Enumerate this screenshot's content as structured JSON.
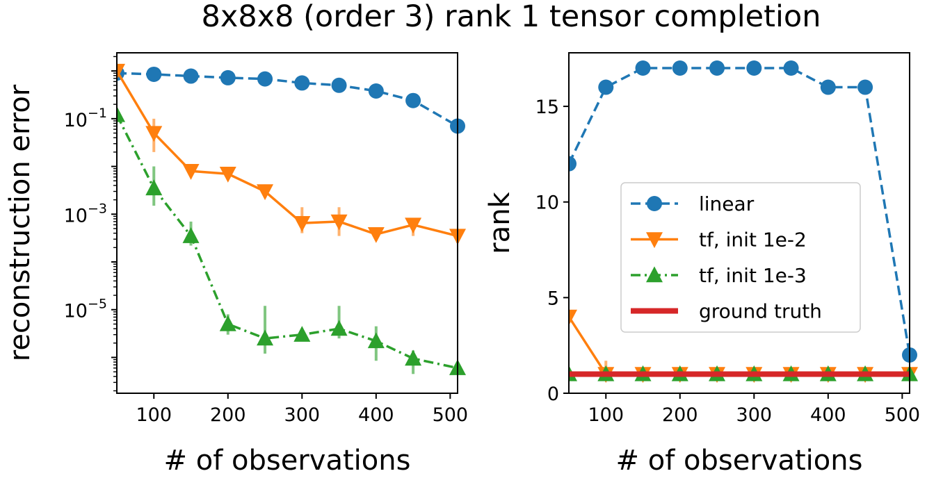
{
  "suptitle": "8x8x8 (order 3) rank 1 tensor completion",
  "colors": {
    "linear": "#1f77b4",
    "tf_1e2": "#ff7f0e",
    "tf_1e3": "#2ca02c",
    "ground_truth": "#d62728"
  },
  "chart_data": [
    {
      "type": "line",
      "yscale": "log",
      "title": "",
      "xlabel": "# of observations",
      "ylabel": "reconstruction error",
      "xlim": [
        50,
        510
      ],
      "ylim_log10": [
        -6.75,
        0.38
      ],
      "xticks": [
        100,
        200,
        300,
        400,
        500
      ],
      "yticks": [
        {
          "exp": -1,
          "label": "10",
          "sup": "−1"
        },
        {
          "exp": -3,
          "label": "10",
          "sup": "−3"
        },
        {
          "exp": -5,
          "label": "10",
          "sup": "−5"
        }
      ],
      "x": [
        50,
        100,
        150,
        200,
        250,
        300,
        350,
        400,
        450,
        510
      ],
      "series": [
        {
          "name": "linear",
          "color_key": "linear",
          "marker": "circle",
          "linestyle": "dashed",
          "values": [
            0.9,
            0.85,
            0.78,
            0.72,
            0.68,
            0.56,
            0.5,
            0.38,
            0.24,
            0.07
          ]
        },
        {
          "name": "tf, init 1e-2",
          "color_key": "tf_1e2",
          "marker": "triangle-down",
          "linestyle": "solid",
          "values": [
            1.0,
            0.05,
            0.008,
            0.007,
            0.003,
            0.00065,
            0.0007,
            0.00038,
            0.0006,
            0.00035
          ],
          "err_low": [
            0.9,
            0.02,
            0.006,
            0.0055,
            0.0022,
            0.0004,
            0.00035,
            0.00028,
            0.00035,
            0.00025
          ],
          "err_high": [
            1.15,
            0.1,
            0.011,
            0.009,
            0.0042,
            0.0014,
            0.0014,
            0.0005,
            0.0008,
            0.00045
          ]
        },
        {
          "name": "tf, init 1e-3",
          "color_key": "tf_1e3",
          "marker": "triangle-up",
          "linestyle": "dashdot",
          "values": [
            0.12,
            0.0035,
            0.00035,
            5e-06,
            2.5e-06,
            3e-06,
            4e-06,
            2.2e-06,
            9.5e-07,
            6e-07
          ],
          "err_low": [
            0.1,
            0.0015,
            0.00022,
            3e-06,
            1.2e-06,
            2.5e-06,
            2.5e-06,
            8.5e-07,
            4.5e-07,
            5e-07
          ],
          "err_high": [
            0.15,
            0.01,
            0.0007,
            8e-06,
            1.2e-05,
            3.8e-06,
            1.2e-05,
            4.5e-06,
            1.4e-06,
            7e-07
          ]
        }
      ]
    },
    {
      "type": "line",
      "yscale": "linear",
      "title": "",
      "xlabel": "# of observations",
      "ylabel": "rank",
      "xlim": [
        50,
        510
      ],
      "ylim": [
        0,
        17.8
      ],
      "xticks": [
        100,
        200,
        300,
        400,
        500
      ],
      "yticks": [
        0,
        5,
        10,
        15
      ],
      "legend": {
        "placement": "center-right",
        "entries": [
          "linear",
          "tf, init 1e-2",
          "tf, init 1e-3",
          "ground truth"
        ]
      },
      "x": [
        50,
        100,
        150,
        200,
        250,
        300,
        350,
        400,
        450,
        510
      ],
      "series": [
        {
          "name": "linear",
          "color_key": "linear",
          "marker": "circle",
          "linestyle": "dashed",
          "values": [
            12,
            16,
            17,
            17,
            17,
            17,
            17,
            16,
            16,
            2
          ]
        },
        {
          "name": "tf, init 1e-2",
          "color_key": "tf_1e2",
          "marker": "triangle-down",
          "linestyle": "solid",
          "values": [
            4,
            1,
            1,
            1,
            1,
            1,
            1,
            1,
            1,
            1
          ],
          "err_low": [
            4,
            1,
            1,
            1,
            1,
            1,
            1,
            1,
            1,
            1
          ],
          "err_high": [
            4,
            1.7,
            1,
            1,
            1,
            1,
            1,
            1,
            1,
            1
          ]
        },
        {
          "name": "tf, init 1e-3",
          "color_key": "tf_1e3",
          "marker": "triangle-up",
          "linestyle": "dashdot",
          "values": [
            1,
            1,
            1,
            1,
            1,
            1,
            1,
            1,
            1,
            1
          ]
        },
        {
          "name": "ground truth",
          "color_key": "ground_truth",
          "marker": "none",
          "linestyle": "solid-thick",
          "values": [
            1,
            1,
            1,
            1,
            1,
            1,
            1,
            1,
            1,
            1
          ]
        }
      ]
    }
  ]
}
